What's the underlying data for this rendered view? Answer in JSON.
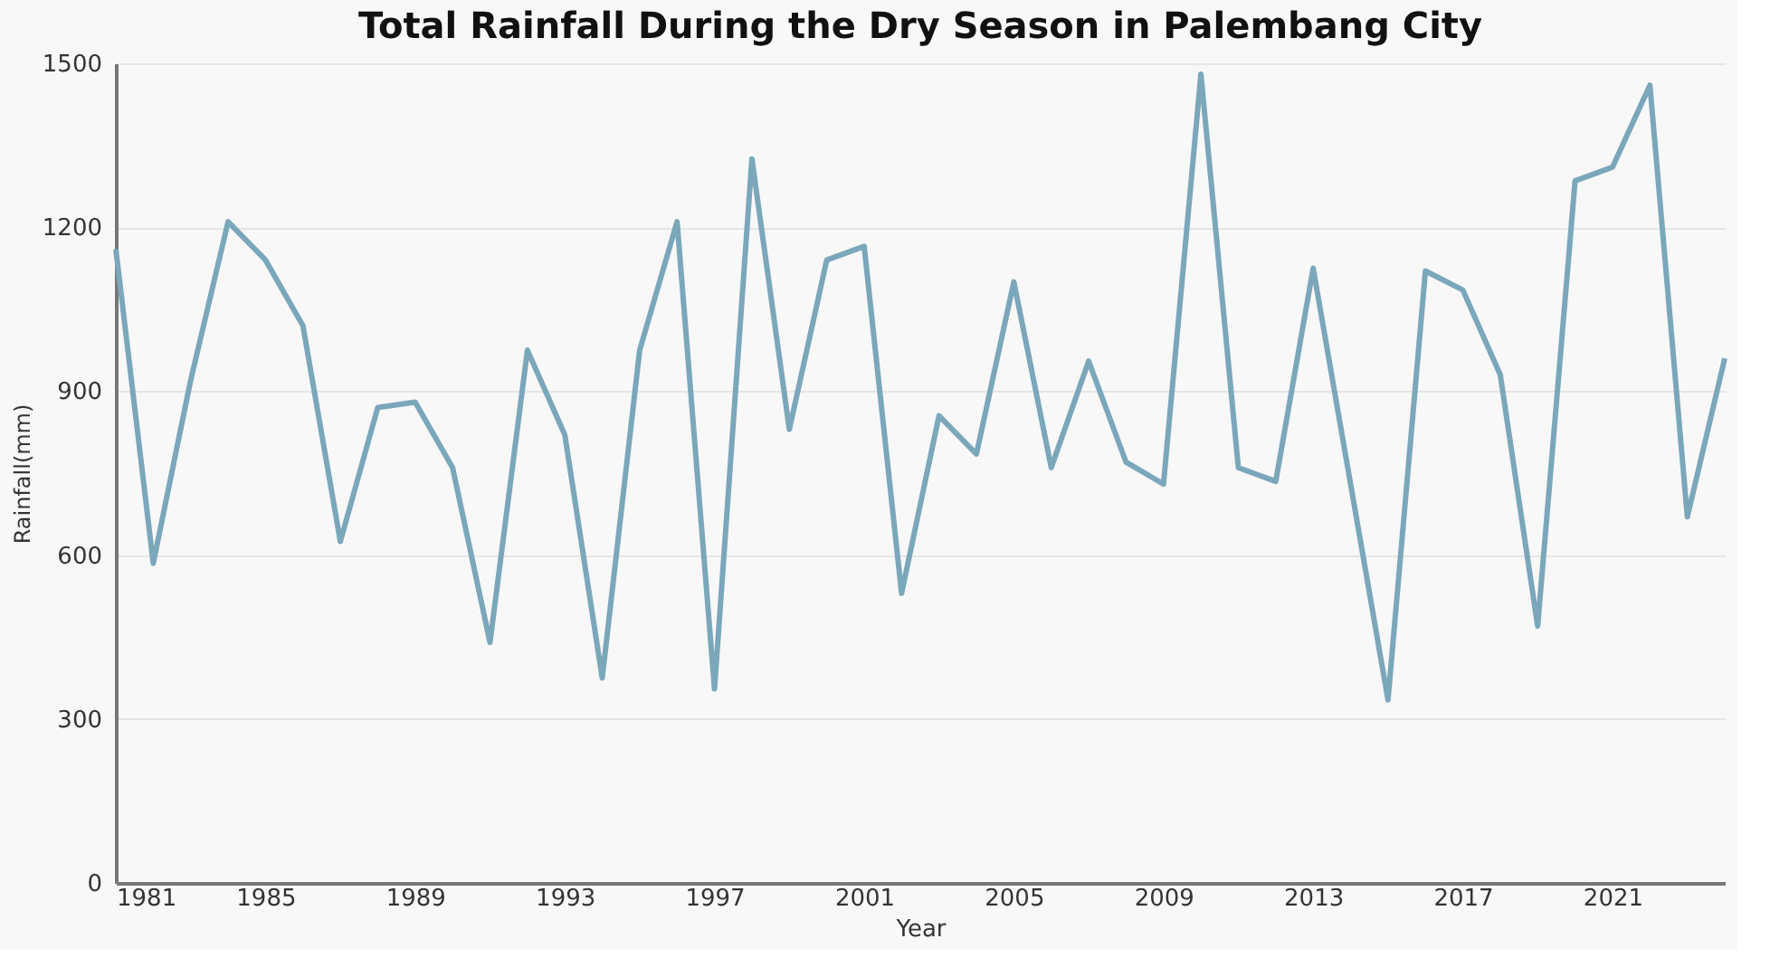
{
  "chart_data": {
    "type": "line",
    "title": "Total Rainfall During the Dry Season in Palembang City",
    "xlabel": "Year",
    "ylabel": "Rainfall(mm)",
    "x": [
      1981,
      1982,
      1983,
      1984,
      1985,
      1986,
      1987,
      1988,
      1989,
      1990,
      1991,
      1992,
      1993,
      1994,
      1995,
      1996,
      1997,
      1998,
      1999,
      2000,
      2001,
      2002,
      2003,
      2004,
      2005,
      2006,
      2007,
      2008,
      2009,
      2010,
      2011,
      2012,
      2013,
      2014,
      2015,
      2016,
      2017,
      2018,
      2019,
      2020,
      2021,
      2022,
      2023,
      2024
    ],
    "series": [
      {
        "color": "#7ba7ba",
        "values": [
          1160,
          585,
          920,
          1210,
          1140,
          1020,
          625,
          870,
          880,
          760,
          440,
          975,
          820,
          375,
          975,
          1210,
          355,
          1325,
          830,
          1140,
          1165,
          530,
          855,
          785,
          1100,
          760,
          955,
          770,
          730,
          1480,
          760,
          735,
          1125,
          730,
          335,
          1120,
          1085,
          930,
          470,
          1285,
          1310,
          1460,
          670,
          960
        ]
      }
    ],
    "xlim": [
      1981,
      2024
    ],
    "xticks": [
      1981,
      1985,
      1989,
      1993,
      1997,
      2001,
      2005,
      2009,
      2013,
      2017,
      2021
    ],
    "ylim": [
      0,
      1500
    ],
    "yticks": [
      0,
      300,
      600,
      900,
      1200,
      1500
    ],
    "grid": "y",
    "marker": "none",
    "line_style": "solid"
  }
}
